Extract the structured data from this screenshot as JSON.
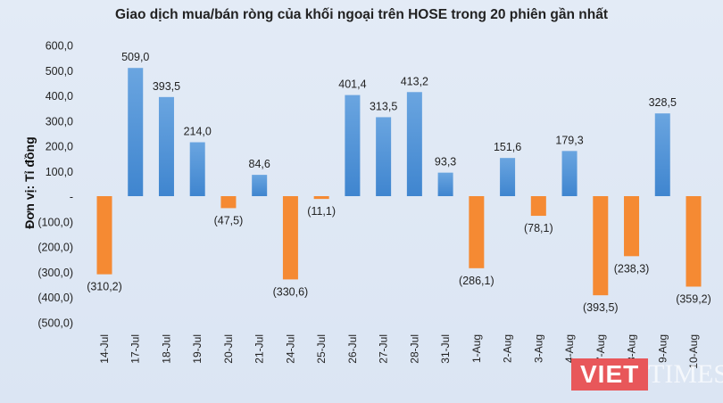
{
  "chart_data": {
    "type": "bar",
    "title": "Giao dịch mua/bán ròng của khối ngoại trên HOSE trong 20 phiên gần nhất",
    "ylabel": "Đơn vị: Tỉ đồng",
    "xlabel": "",
    "ylim": [
      -500,
      600
    ],
    "yticks": [
      600,
      500,
      400,
      300,
      200,
      100,
      0,
      -100,
      -200,
      -300,
      -400,
      -500
    ],
    "ytick_labels": [
      "600,0",
      "500,0",
      "400,0",
      "300,0",
      "200,0",
      "100,0",
      "-",
      "(100,0)",
      "(200,0)",
      "(300,0)",
      "(400,0)",
      "(500,0)"
    ],
    "grid": false,
    "categories": [
      "14-Jul",
      "17-Jul",
      "18-Jul",
      "19-Jul",
      "20-Jul",
      "21-Jul",
      "24-Jul",
      "25-Jul",
      "26-Jul",
      "27-Jul",
      "28-Jul",
      "31-Jul",
      "1-Aug",
      "2-Aug",
      "3-Aug",
      "4-Aug",
      "7-Aug",
      "8-Aug",
      "9-Aug",
      "10-Aug"
    ],
    "values": [
      -310.2,
      509.0,
      393.5,
      214.0,
      -47.5,
      84.6,
      -330.6,
      -11.1,
      401.4,
      313.5,
      413.2,
      93.3,
      -286.1,
      151.6,
      -78.1,
      179.3,
      -393.5,
      -238.3,
      328.5,
      -359.2
    ],
    "data_labels": [
      "(310,2)",
      "509,0",
      "393,5",
      "214,0",
      "(47,5)",
      "84,6",
      "(330,6)",
      "(11,1)",
      "401,4",
      "313,5",
      "413,2",
      "93,3",
      "(286,1)",
      "151,6",
      "(78,1)",
      "179,3",
      "(393,5)",
      "(238,3)",
      "328,5",
      "(359,2)"
    ],
    "colors": {
      "positive": "#4a8fd6",
      "negative": "#f58a33"
    }
  },
  "watermark": {
    "brand_left": "VIET",
    "brand_right": "TIMES",
    "color": "#e8575a"
  }
}
